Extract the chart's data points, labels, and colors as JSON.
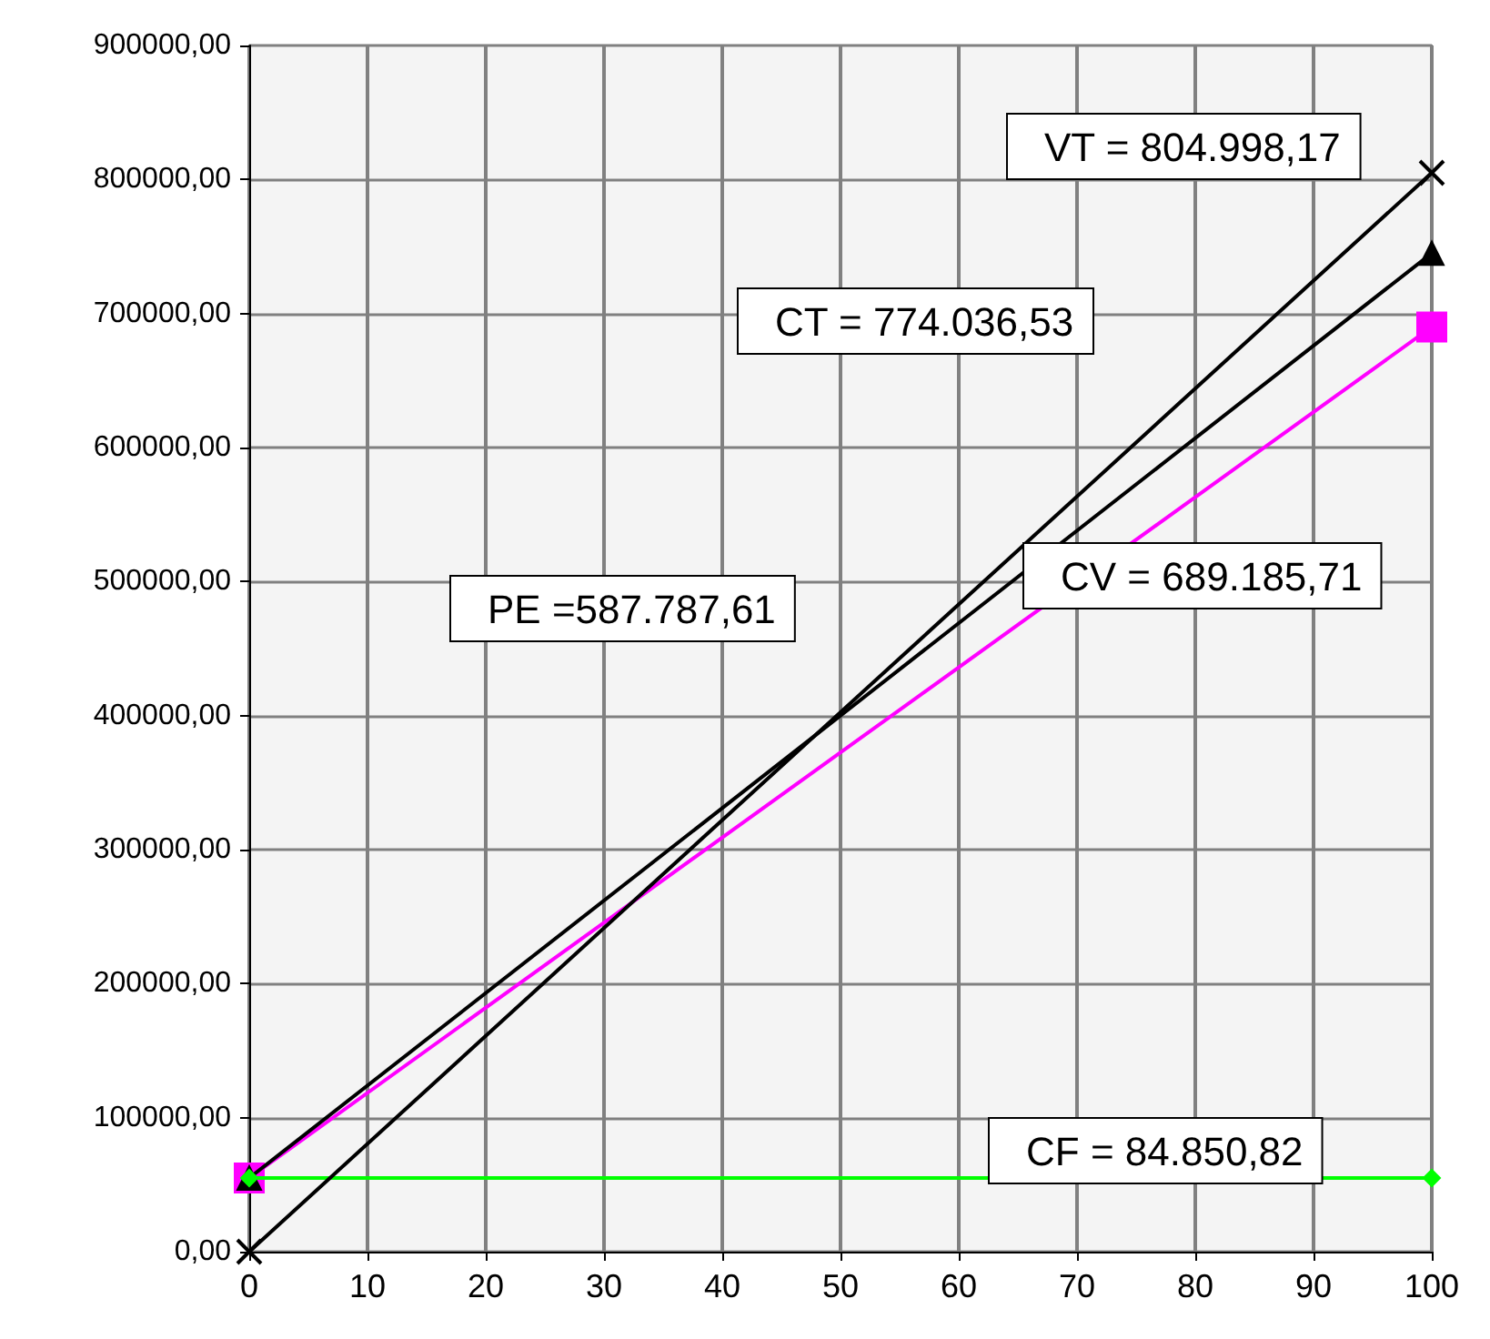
{
  "chart_data": {
    "type": "line",
    "x": [
      0,
      100
    ],
    "series": [
      {
        "color": "#000000",
        "marker": "cross",
        "values": [
          0,
          805000
        ]
      },
      {
        "color": "#000000",
        "marker": "triangle",
        "values": [
          55000,
          745000
        ]
      },
      {
        "color": "#ff00ff",
        "marker": "square",
        "values": [
          55000,
          690000
        ]
      },
      {
        "color": "#00ff00",
        "marker": "diamond",
        "values": [
          55000,
          55000
        ]
      }
    ],
    "xlim": [
      0,
      100
    ],
    "xticks": [
      0,
      10,
      20,
      30,
      40,
      50,
      60,
      70,
      80,
      90,
      100
    ],
    "ylim": [
      0,
      900000
    ],
    "yticks": [
      {
        "value": 0,
        "label": "0,00"
      },
      {
        "value": 100000,
        "label": "100000,00"
      },
      {
        "value": 200000,
        "label": "200000,00"
      },
      {
        "value": 300000,
        "label": "300000,00"
      },
      {
        "value": 400000,
        "label": "400000,00"
      },
      {
        "value": 500000,
        "label": "500000,00"
      },
      {
        "value": 600000,
        "label": "600000,00"
      },
      {
        "value": 700000,
        "label": "700000,00"
      },
      {
        "value": 800000,
        "label": "800000,00"
      },
      {
        "value": 900000,
        "label": "900000,00"
      }
    ],
    "annotations": [
      "VT = 804.998,17",
      "CT = 774.036,53",
      "PE =587.787,61",
      "CV = 689.185,71",
      "CF = 84.850,82"
    ],
    "grid": true,
    "line_style": "solid"
  }
}
